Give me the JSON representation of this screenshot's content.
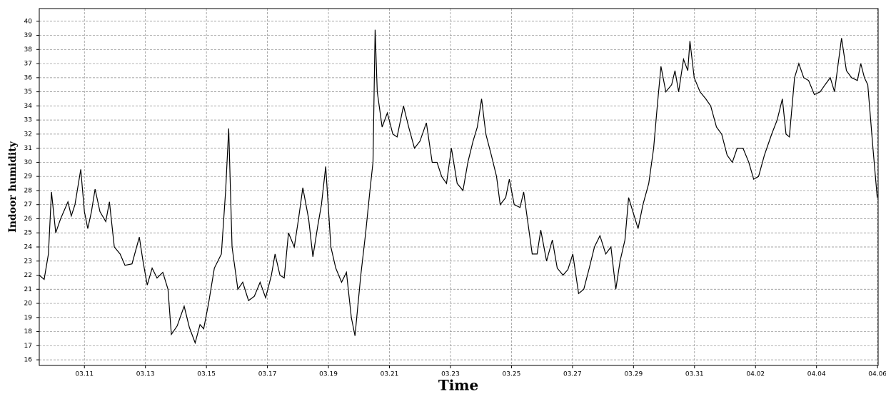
{
  "chart_data": {
    "type": "line",
    "xlabel": "Time",
    "ylabel": "Indoor humidity",
    "color": "#000000",
    "grid": true,
    "xlim": [
      9.52,
      37.02
    ],
    "ylim": [
      15.6,
      40.9
    ],
    "yticks": [
      16,
      17,
      18,
      19,
      20,
      21,
      22,
      23,
      24,
      25,
      26,
      27,
      28,
      29,
      30,
      31,
      32,
      33,
      34,
      35,
      36,
      37,
      38,
      39,
      40
    ],
    "xticks": [
      {
        "value": 11,
        "label": "03.11"
      },
      {
        "value": 13,
        "label": "03.13"
      },
      {
        "value": 15,
        "label": "03.15"
      },
      {
        "value": 17,
        "label": "03.17"
      },
      {
        "value": 19,
        "label": "03.19"
      },
      {
        "value": 21,
        "label": "03.21"
      },
      {
        "value": 23,
        "label": "03.23"
      },
      {
        "value": 25,
        "label": "03.25"
      },
      {
        "value": 27,
        "label": "03.27"
      },
      {
        "value": 29,
        "label": "03.29"
      },
      {
        "value": 31,
        "label": "03.31"
      },
      {
        "value": 33,
        "label": "04.02"
      },
      {
        "value": 35,
        "label": "04.04"
      },
      {
        "value": 37,
        "label": "04.06"
      }
    ],
    "x": [
      9.52,
      9.68,
      9.82,
      9.92,
      10.06,
      10.22,
      10.46,
      10.57,
      10.69,
      10.88,
      11.0,
      11.11,
      11.23,
      11.35,
      11.51,
      11.7,
      11.82,
      11.98,
      12.17,
      12.33,
      12.56,
      12.8,
      12.92,
      13.06,
      13.22,
      13.38,
      13.57,
      13.74,
      13.85,
      14.04,
      14.27,
      14.44,
      14.63,
      14.79,
      14.91,
      15.07,
      15.26,
      15.49,
      15.63,
      15.73,
      15.84,
      16.03,
      16.19,
      16.38,
      16.57,
      16.76,
      16.94,
      17.13,
      17.25,
      17.41,
      17.55,
      17.69,
      17.88,
      18.02,
      18.16,
      18.35,
      18.49,
      18.65,
      18.77,
      18.91,
      19.08,
      19.24,
      19.43,
      19.59,
      19.75,
      19.87,
      20.06,
      20.22,
      20.36,
      20.46,
      20.53,
      20.6,
      20.76,
      20.93,
      21.11,
      21.25,
      21.46,
      21.63,
      21.82,
      22.0,
      22.21,
      22.4,
      22.56,
      22.71,
      22.87,
      23.03,
      23.22,
      23.41,
      23.57,
      23.74,
      23.88,
      24.02,
      24.16,
      24.34,
      24.51,
      24.63,
      24.81,
      24.93,
      25.09,
      25.28,
      25.4,
      25.52,
      25.68,
      25.84,
      25.96,
      26.15,
      26.34,
      26.5,
      26.69,
      26.85,
      27.01,
      27.2,
      27.37,
      27.55,
      27.72,
      27.9,
      28.09,
      28.26,
      28.42,
      28.56,
      28.72,
      28.84,
      28.98,
      29.15,
      29.31,
      29.5,
      29.66,
      29.78,
      29.9,
      30.06,
      30.25,
      30.36,
      30.48,
      30.64,
      30.78,
      30.85,
      30.99,
      31.18,
      31.37,
      31.53,
      31.72,
      31.89,
      32.07,
      32.24,
      32.4,
      32.59,
      32.78,
      32.94,
      33.1,
      33.29,
      33.53,
      33.71,
      33.88,
      34.0,
      34.11,
      34.28,
      34.42,
      34.58,
      34.74,
      34.93,
      35.12,
      35.28,
      35.45,
      35.59,
      35.68,
      35.82,
      35.98,
      36.15,
      36.34,
      36.45,
      36.57,
      36.68,
      36.85,
      36.99
    ],
    "values": [
      22,
      21.7,
      23.5,
      27.9,
      25,
      26,
      27.2,
      26.2,
      27,
      29.5,
      26.5,
      25.3,
      26.5,
      28.1,
      26.5,
      25.8,
      27.2,
      24,
      23.5,
      22.7,
      22.8,
      24.7,
      23,
      21.3,
      22.5,
      21.8,
      22.2,
      21,
      17.8,
      18.4,
      19.8,
      18.3,
      17.2,
      18.5,
      18.2,
      20,
      22.5,
      23.5,
      28,
      32.4,
      24,
      21,
      21.5,
      20.2,
      20.5,
      21.5,
      20.4,
      22,
      23.5,
      22,
      21.8,
      25,
      24,
      26,
      28.2,
      26,
      23.3,
      25.5,
      27,
      29.7,
      24,
      22.5,
      21.5,
      22.2,
      19,
      17.7,
      22,
      25,
      28,
      30,
      39.4,
      35,
      32.5,
      33.5,
      32,
      31.8,
      34,
      32.5,
      31,
      31.5,
      32.8,
      30,
      30,
      29,
      28.5,
      31,
      28.5,
      28,
      30,
      31.5,
      32.5,
      34.5,
      32,
      30.5,
      29,
      27,
      27.5,
      28.8,
      27,
      26.8,
      27.9,
      26,
      23.5,
      23.5,
      25.2,
      23,
      24.5,
      22.5,
      22,
      22.4,
      23.5,
      20.7,
      21,
      22.5,
      24,
      24.8,
      23.5,
      24,
      21,
      23,
      24.5,
      27.5,
      26.5,
      25.3,
      27,
      28.5,
      31,
      34,
      36.8,
      35,
      35.5,
      36.5,
      35,
      37.3,
      36.5,
      38.6,
      36,
      35,
      34.5,
      34,
      32.5,
      32,
      30.5,
      30,
      31,
      31,
      30,
      28.8,
      29,
      30.5,
      32,
      33,
      34.5,
      32,
      31.8,
      36,
      37,
      36,
      35.8,
      34.8,
      35,
      35.5,
      36,
      35,
      36.5,
      38.8,
      36.5,
      36,
      35.8,
      37,
      36,
      35.5,
      31,
      27.5
    ]
  }
}
